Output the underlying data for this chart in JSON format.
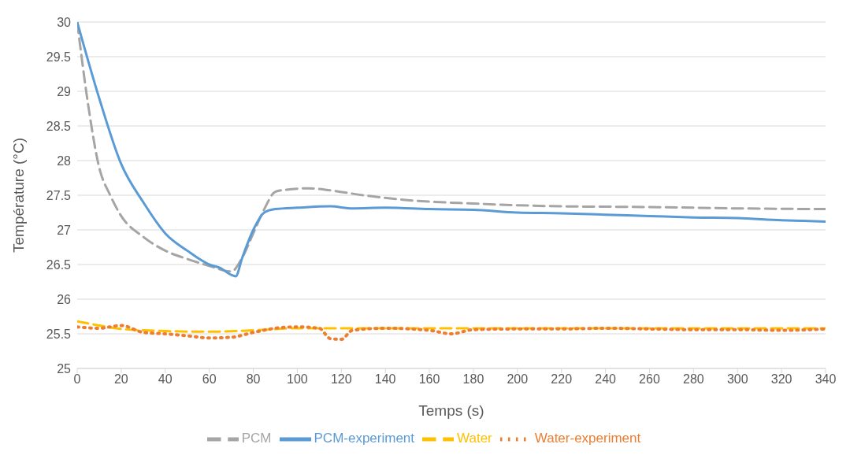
{
  "chart_data": {
    "type": "line",
    "xlabel": "Temps (s)",
    "ylabel": "Température (°C)",
    "xlim": [
      0,
      340
    ],
    "xticks": [
      0,
      20,
      40,
      60,
      80,
      100,
      120,
      140,
      160,
      180,
      200,
      220,
      240,
      260,
      280,
      300,
      320,
      340
    ],
    "ylim": [
      25,
      30
    ],
    "yticks": [
      25,
      25.5,
      26,
      26.5,
      27,
      27.5,
      28,
      28.5,
      29,
      29.5,
      30
    ],
    "grid": "y",
    "legend": "bottom",
    "marker": "none",
    "series": [
      {
        "name": "PCM",
        "color": "#a5a5a5",
        "line_style": "dashed",
        "x": [
          0,
          5,
          10,
          15,
          20,
          30,
          40,
          50,
          60,
          70,
          75,
          80,
          85,
          90,
          95,
          105,
          115,
          130,
          150,
          180,
          220,
          260,
          300,
          340
        ],
        "values": [
          30,
          28.8,
          27.9,
          27.5,
          27.2,
          26.9,
          26.7,
          26.58,
          26.48,
          26.4,
          26.6,
          26.95,
          27.3,
          27.55,
          27.58,
          27.6,
          27.57,
          27.5,
          27.43,
          27.38,
          27.34,
          27.33,
          27.31,
          27.3
        ]
      },
      {
        "name": "Water",
        "color": "#ffc000",
        "line_style": "dashed",
        "x": [
          0,
          10,
          20,
          40,
          60,
          80,
          100,
          140,
          200,
          260,
          340
        ],
        "values": [
          25.68,
          25.62,
          25.57,
          25.54,
          25.53,
          25.55,
          25.58,
          25.58,
          25.58,
          25.58,
          25.58
        ]
      },
      {
        "name": "PCM-experiment",
        "color": "#5b9bd5",
        "line_style": "solid",
        "x": [
          0,
          10,
          20,
          30,
          40,
          50,
          60,
          65,
          70,
          72,
          75,
          80,
          85,
          90,
          100,
          115,
          125,
          140,
          160,
          180,
          200,
          220,
          240,
          260,
          280,
          300,
          320,
          330,
          340
        ],
        "values": [
          30,
          28.9,
          27.95,
          27.4,
          26.95,
          26.7,
          26.5,
          26.45,
          26.35,
          26.33,
          26.6,
          27,
          27.25,
          27.3,
          27.32,
          27.34,
          27.31,
          27.32,
          27.3,
          27.29,
          27.25,
          27.24,
          27.22,
          27.2,
          27.18,
          27.17,
          27.14,
          27.13,
          27.12
        ]
      },
      {
        "name": "Water-experiment",
        "color": "#ed7d31",
        "line_style": "dotted",
        "x": [
          0,
          10,
          20,
          30,
          40,
          50,
          60,
          70,
          80,
          90,
          100,
          110,
          115,
          120,
          125,
          140,
          160,
          170,
          180,
          200,
          220,
          240,
          260,
          280,
          300,
          320,
          340
        ],
        "values": [
          25.6,
          25.58,
          25.62,
          25.52,
          25.5,
          25.47,
          25.44,
          25.45,
          25.52,
          25.58,
          25.6,
          25.58,
          25.43,
          25.42,
          25.55,
          25.58,
          25.55,
          25.5,
          25.56,
          25.57,
          25.57,
          25.58,
          25.57,
          25.56,
          25.56,
          25.55,
          25.57
        ]
      }
    ]
  }
}
